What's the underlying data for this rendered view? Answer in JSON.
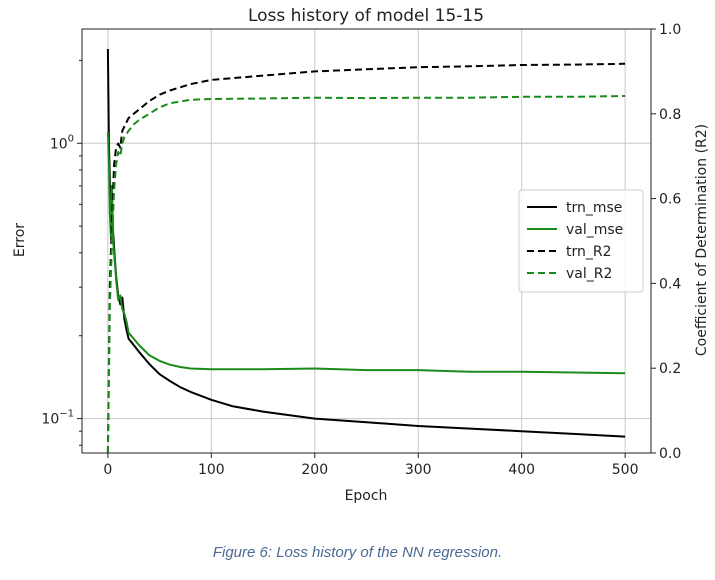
{
  "chart_data": {
    "type": "line",
    "title": "Loss history of model 15-15",
    "xlabel": "Epoch",
    "ylabel": "Error",
    "y2label": "Coefficient of Determination (R2)",
    "xlim": [
      -25,
      525
    ],
    "ylim_log": [
      0.075,
      2.6
    ],
    "y2lim": [
      0.0,
      1.0
    ],
    "xticks": [
      0,
      100,
      200,
      300,
      400,
      500
    ],
    "yticks": [
      {
        "value": 1.0,
        "base": "10",
        "exp": "0"
      },
      {
        "value": 0.1,
        "base": "10",
        "exp": "−1"
      }
    ],
    "y2ticks": [
      0.0,
      0.2,
      0.4,
      0.6,
      0.8,
      1.0
    ],
    "y2ticklabels": [
      "0.0",
      "0.2",
      "0.4",
      "0.6",
      "0.8",
      "1.0"
    ],
    "grid": true,
    "legend_position": "center-right",
    "series": [
      {
        "name": "trn_mse",
        "axis": "left",
        "color": "#000000",
        "dash": "solid",
        "x": [
          0,
          1,
          2,
          3,
          4,
          5,
          6,
          7,
          8,
          10,
          12,
          14,
          16,
          18,
          20,
          25,
          30,
          40,
          50,
          60,
          70,
          80,
          100,
          120,
          150,
          200,
          250,
          300,
          350,
          400,
          450,
          500
        ],
        "y": [
          2.2,
          1.0,
          0.72,
          0.55,
          0.62,
          0.48,
          0.42,
          0.37,
          0.33,
          0.28,
          0.26,
          0.275,
          0.23,
          0.21,
          0.195,
          0.185,
          0.175,
          0.158,
          0.145,
          0.137,
          0.13,
          0.125,
          0.117,
          0.111,
          0.106,
          0.1,
          0.097,
          0.094,
          0.092,
          0.09,
          0.088,
          0.086
        ]
      },
      {
        "name": "val_mse",
        "axis": "left",
        "color": "#1a8a1a",
        "dash": "solid",
        "x": [
          0,
          1,
          2,
          3,
          4,
          5,
          6,
          7,
          8,
          10,
          12,
          14,
          16,
          18,
          20,
          25,
          30,
          40,
          50,
          60,
          70,
          80,
          100,
          150,
          200,
          250,
          300,
          350,
          400,
          450,
          500
        ],
        "y": [
          1.1,
          0.85,
          0.55,
          0.45,
          0.7,
          0.45,
          0.4,
          0.36,
          0.32,
          0.27,
          0.28,
          0.25,
          0.24,
          0.225,
          0.205,
          0.195,
          0.185,
          0.17,
          0.162,
          0.157,
          0.154,
          0.152,
          0.151,
          0.151,
          0.152,
          0.15,
          0.15,
          0.148,
          0.148,
          0.147,
          0.146
        ]
      },
      {
        "name": "trn_R2",
        "axis": "right",
        "color": "#000000",
        "dash": "dashed",
        "x": [
          0,
          2,
          4,
          6,
          8,
          10,
          12,
          14,
          16,
          20,
          25,
          30,
          40,
          50,
          60,
          80,
          100,
          150,
          200,
          250,
          300,
          350,
          400,
          450,
          500
        ],
        "y": [
          0.0,
          0.4,
          0.55,
          0.68,
          0.72,
          0.73,
          0.72,
          0.76,
          0.77,
          0.79,
          0.8,
          0.81,
          0.83,
          0.845,
          0.855,
          0.87,
          0.88,
          0.89,
          0.9,
          0.905,
          0.91,
          0.912,
          0.915,
          0.916,
          0.918
        ]
      },
      {
        "name": "val_R2",
        "axis": "right",
        "color": "#1a8a1a",
        "dash": "dashed",
        "x": [
          0,
          2,
          4,
          6,
          8,
          10,
          12,
          14,
          16,
          20,
          25,
          30,
          40,
          50,
          60,
          80,
          100,
          150,
          200,
          250,
          300,
          350,
          400,
          450,
          500
        ],
        "y": [
          0.0,
          0.35,
          0.5,
          0.62,
          0.68,
          0.71,
          0.7,
          0.73,
          0.745,
          0.76,
          0.775,
          0.785,
          0.8,
          0.815,
          0.825,
          0.833,
          0.835,
          0.836,
          0.838,
          0.837,
          0.838,
          0.838,
          0.84,
          0.84,
          0.842
        ]
      }
    ]
  },
  "caption": "Figure 6: Loss history of the NN regression."
}
